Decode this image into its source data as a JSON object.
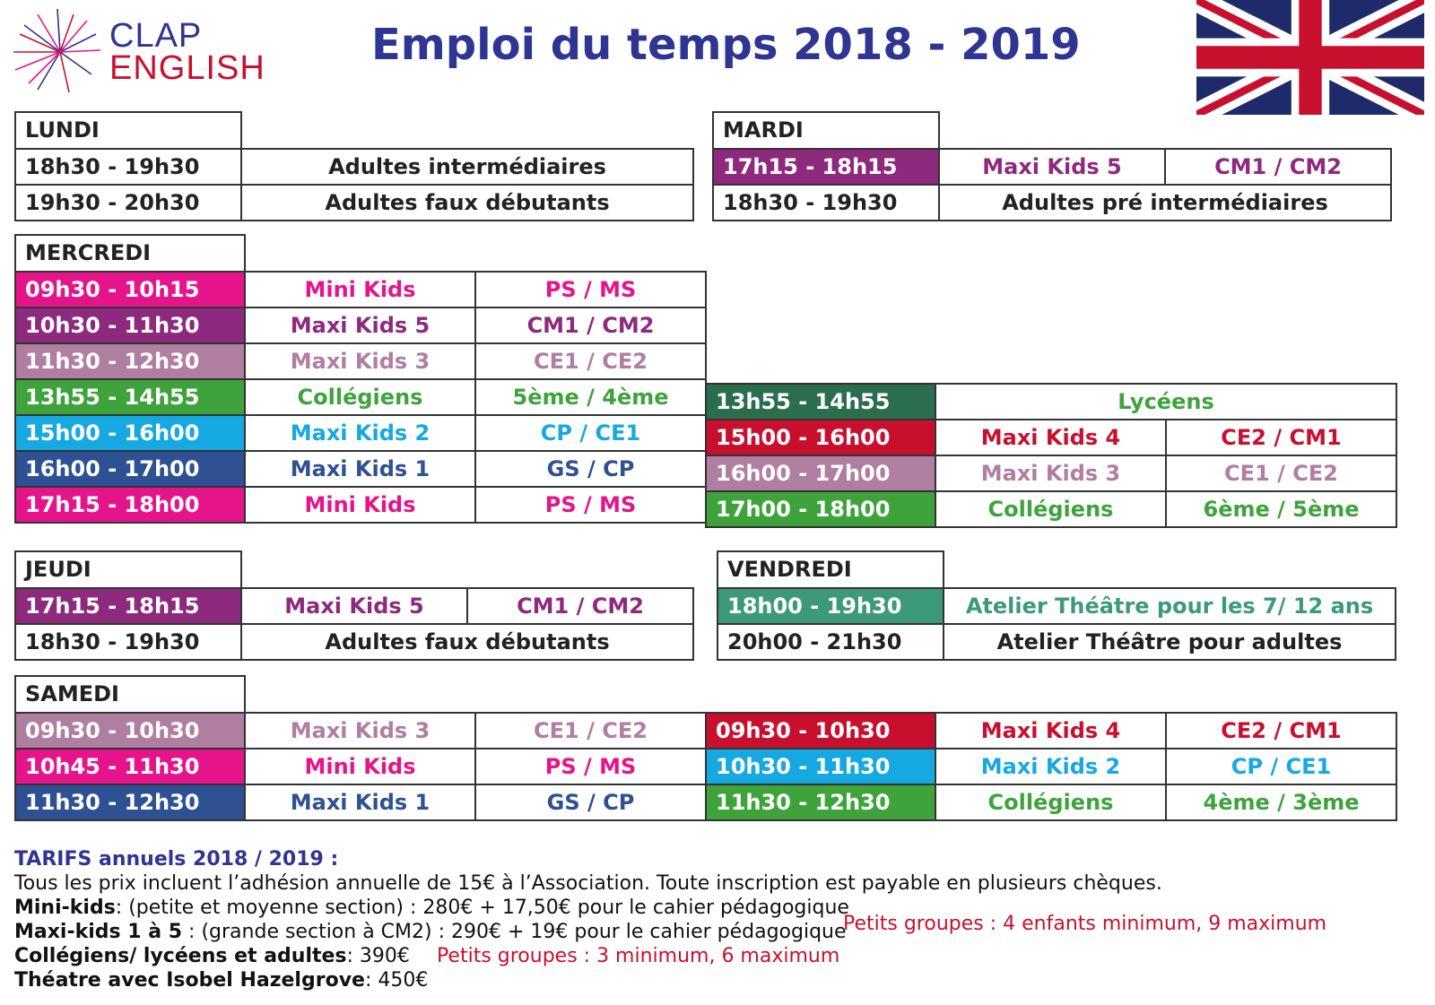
{
  "logo": {
    "line1": "CLAP",
    "line2": "ENGLISH"
  },
  "title": "Emploi du temps 2018 - 2019",
  "colors": {
    "pink": "#e6148b",
    "purple": "#8e2a7e",
    "mauve": "#b07ea0",
    "green": "#3fa33c",
    "darkgreen": "#2a6e4e",
    "cyan": "#16a9e1",
    "blue": "#2d5193",
    "red": "#c8102e",
    "teal": "#3c9a7a",
    "navy": "#2e3592"
  },
  "lundi": {
    "day": "LUNDI",
    "rows": [
      {
        "time": "18h30 - 19h30",
        "course": "Adultes intermédiaires"
      },
      {
        "time": "19h30 - 20h30",
        "course": "Adultes faux débutants"
      }
    ]
  },
  "mardi": {
    "day": "MARDI",
    "rows": [
      {
        "time": "17h15 - 18h15",
        "course": "Maxi Kids 5",
        "level": "CM1 / CM2"
      },
      {
        "time": "18h30 - 19h30",
        "course": "Adultes pré intermédiaires"
      }
    ]
  },
  "mercredi": {
    "day": "MERCREDI",
    "left": [
      {
        "time": "09h30 - 10h15",
        "course": "Mini Kids",
        "level": "PS / MS"
      },
      {
        "time": "10h30 - 11h30",
        "course": "Maxi Kids 5",
        "level": "CM1 / CM2"
      },
      {
        "time": "11h30 - 12h30",
        "course": "Maxi Kids 3",
        "level": "CE1 / CE2"
      },
      {
        "time": "13h55 - 14h55",
        "course": "Collégiens",
        "level": "5ème / 4ème"
      },
      {
        "time": "15h00 - 16h00",
        "course": "Maxi Kids 2",
        "level": "CP / CE1"
      },
      {
        "time": "16h00 - 17h00",
        "course": "Maxi Kids 1",
        "level": "GS / CP"
      },
      {
        "time": "17h15 - 18h00",
        "course": "Mini Kids",
        "level": "PS / MS"
      }
    ],
    "right": [
      {
        "time": "13h55 - 14h55",
        "course": "Lycéens"
      },
      {
        "time": "15h00 - 16h00",
        "course": "Maxi Kids 4",
        "level": "CE2 / CM1"
      },
      {
        "time": "16h00 - 17h00",
        "course": "Maxi Kids 3",
        "level": "CE1 / CE2"
      },
      {
        "time": "17h00 - 18h00",
        "course": "Collégiens",
        "level": "6ème / 5ème"
      }
    ]
  },
  "jeudi": {
    "day": "JEUDI",
    "rows": [
      {
        "time": "17h15 - 18h15",
        "course": "Maxi Kids 5",
        "level": "CM1 / CM2"
      },
      {
        "time": "18h30 - 19h30",
        "course": "Adultes faux débutants"
      }
    ]
  },
  "vendredi": {
    "day": "VENDREDI",
    "rows": [
      {
        "time": "18h00 - 19h30",
        "course": "Atelier Théâtre pour les 7/ 12 ans"
      },
      {
        "time": "20h00 - 21h30",
        "course": "Atelier Théâtre pour adultes"
      }
    ]
  },
  "samedi": {
    "day": "SAMEDI",
    "left": [
      {
        "time": "09h30 - 10h30",
        "course": "Maxi Kids 3",
        "level": "CE1 / CE2"
      },
      {
        "time": "10h45 - 11h30",
        "course": "Mini Kids",
        "level": "PS / MS"
      },
      {
        "time": "11h30 - 12h30",
        "course": "Maxi Kids 1",
        "level": "GS / CP"
      }
    ],
    "right": [
      {
        "time": "09h30 - 10h30",
        "course": "Maxi Kids 4",
        "level": "CE2 / CM1"
      },
      {
        "time": "10h30 - 11h30",
        "course": "Maxi Kids 2",
        "level": "CP / CE1"
      },
      {
        "time": "11h30 - 12h30",
        "course": "Collégiens",
        "level": "4ème / 3ème"
      }
    ]
  },
  "tarifs": {
    "title": "TARIFS annuels 2018 / 2019 :",
    "line1": "Tous les prix incluent l’adhésion annuelle de 15€ à l’Association. Toute inscription est payable en plusieurs chèques.",
    "mini_label": "Mini-kids",
    "mini_text": ":  (petite et moyenne section) : 280€ + 17,50€ pour le cahier pédagogique",
    "maxi_label": "Maxi-kids 1 à 5",
    "maxi_text": " : (grande section à CM2) : 290€ + 19€ pour le cahier pédagogique",
    "maxi_note": "Petits groupes : 4 enfants minimum, 9 maximum",
    "col_label": "Collégiens/ lycéens et adultes",
    "col_text": ": 390€",
    "col_note": "Petits groupes : 3 minimum, 6 maximum",
    "th_label": "Théatre avec Isobel Hazelgrove",
    "th_text": ": 450€"
  }
}
